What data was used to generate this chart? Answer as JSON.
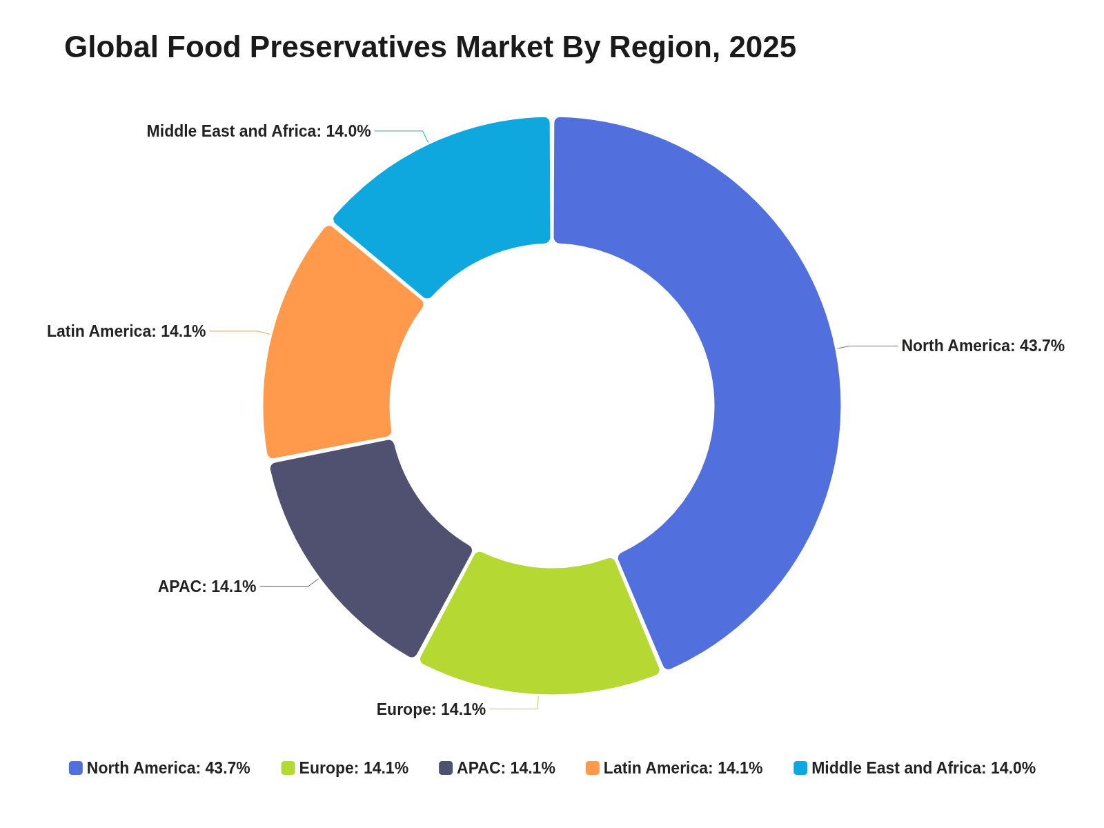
{
  "chart_data": {
    "type": "donut",
    "title": "Global Food Preservatives Market By Region, 2025",
    "categories": [
      "North America",
      "Europe",
      "APAC",
      "Latin America",
      "Middle East and Africa"
    ],
    "values": [
      43.7,
      14.1,
      14.1,
      14.1,
      14.0
    ],
    "value_labels": [
      "43.7%",
      "14.1%",
      "14.1%",
      "14.1%",
      "14.0%"
    ],
    "colors": [
      "#5170de",
      "#b5d832",
      "#505070",
      "#ff9a4d",
      "#0ea8df"
    ],
    "legend": "bottom"
  }
}
